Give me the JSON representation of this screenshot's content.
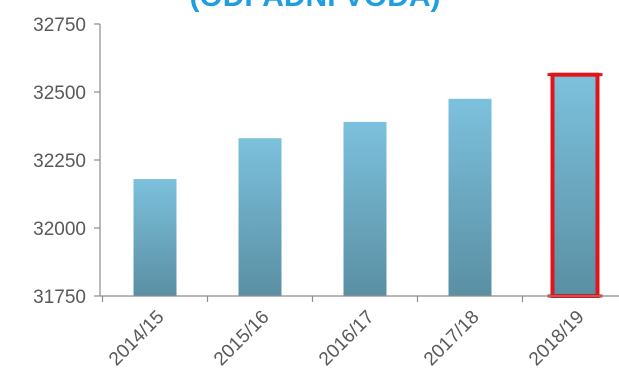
{
  "chart_data": {
    "type": "bar",
    "title": "(ODPADNÍ VODA)",
    "categories": [
      "2014/15",
      "2015/16",
      "2016/17",
      "2017/18",
      "2018/19"
    ],
    "values": [
      32180,
      32330,
      32390,
      32475,
      32560
    ],
    "ylim": [
      31750,
      32750
    ],
    "yticks": [
      31750,
      32000,
      32250,
      32500,
      32750
    ],
    "ytick_labels": [
      "31750",
      "32000",
      "32250",
      "32500",
      "32750"
    ],
    "highlighted_category": "2018/19",
    "colors": {
      "bar_top": "#7cc1dd",
      "bar_bottom": "#5a8fa3",
      "highlight_border": "#e0141b",
      "title": "#1f9fe0",
      "axis": "#8c8c8c"
    }
  }
}
